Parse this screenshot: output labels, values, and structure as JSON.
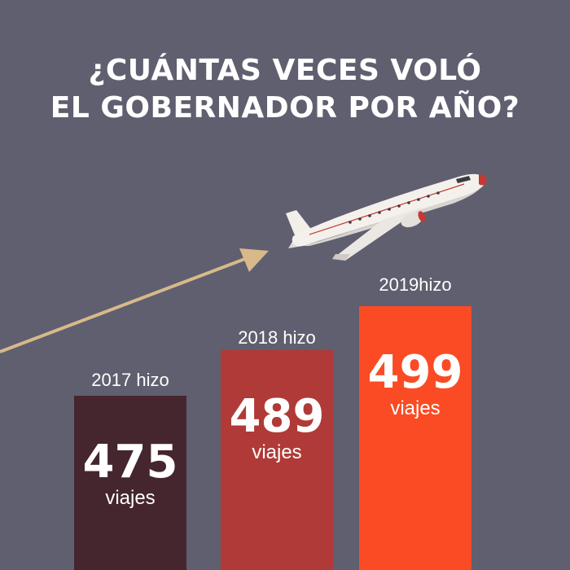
{
  "header": {
    "title_line1": "¿CUÁNTAS VECES VOLÓ",
    "title_line2": "EL GOBERNADOR POR AÑO?"
  },
  "icons": [
    "airplane-icon",
    "arrow-icon"
  ],
  "colors": {
    "background": "#5f5f70",
    "bar_2017": "#45262e",
    "bar_2018": "#b03a37",
    "bar_2019": "#fb4b24",
    "arrow": "#d8b98a"
  },
  "chart_data": {
    "type": "bar",
    "title": "¿CUÁNTAS VECES VOLÓ EL GOBERNADOR POR AÑO?",
    "categories": [
      "2017 hizo",
      "2018 hizo",
      "2019hizo"
    ],
    "values": [
      475,
      489,
      499
    ],
    "unit": "viajes",
    "colors": [
      "#45262e",
      "#b03a37",
      "#fb4b24"
    ]
  }
}
